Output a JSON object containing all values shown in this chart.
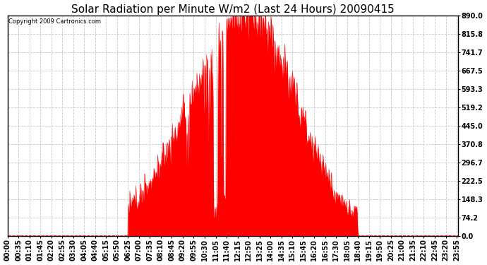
{
  "title": "Solar Radiation per Minute W/m2 (Last 24 Hours) 20090415",
  "copyright": "Copyright 2009 Cartronics.com",
  "ymax": 890.0,
  "ymin": 0.0,
  "yticks": [
    0.0,
    74.2,
    148.3,
    222.5,
    296.7,
    370.8,
    445.0,
    519.2,
    593.3,
    667.5,
    741.7,
    815.8,
    890.0
  ],
  "ytick_labels": [
    "0.0",
    "74.2",
    "148.3",
    "222.5",
    "296.7",
    "370.8",
    "445.0",
    "519.2",
    "593.3",
    "667.5",
    "741.7",
    "815.8",
    "890.0"
  ],
  "fill_color": "#FF0000",
  "line_color": "#FF0000",
  "background_color": "#FFFFFF",
  "plot_background": "#FFFFFF",
  "grid_color": "#C8C8C8",
  "dashed_line_color": "#FF0000",
  "title_fontsize": 11,
  "tick_fontsize": 7,
  "xlabel_rotation": 90,
  "xtick_labels": [
    "00:00",
    "00:35",
    "01:10",
    "01:45",
    "02:20",
    "02:55",
    "03:30",
    "04:05",
    "04:40",
    "05:15",
    "05:50",
    "06:25",
    "07:00",
    "07:35",
    "08:10",
    "08:45",
    "09:20",
    "09:55",
    "10:30",
    "11:05",
    "11:40",
    "12:15",
    "12:50",
    "13:25",
    "14:00",
    "14:35",
    "15:10",
    "15:45",
    "16:20",
    "16:55",
    "17:30",
    "18:05",
    "18:40",
    "19:15",
    "19:50",
    "20:25",
    "21:00",
    "21:35",
    "22:10",
    "22:45",
    "23:20",
    "23:55"
  ]
}
